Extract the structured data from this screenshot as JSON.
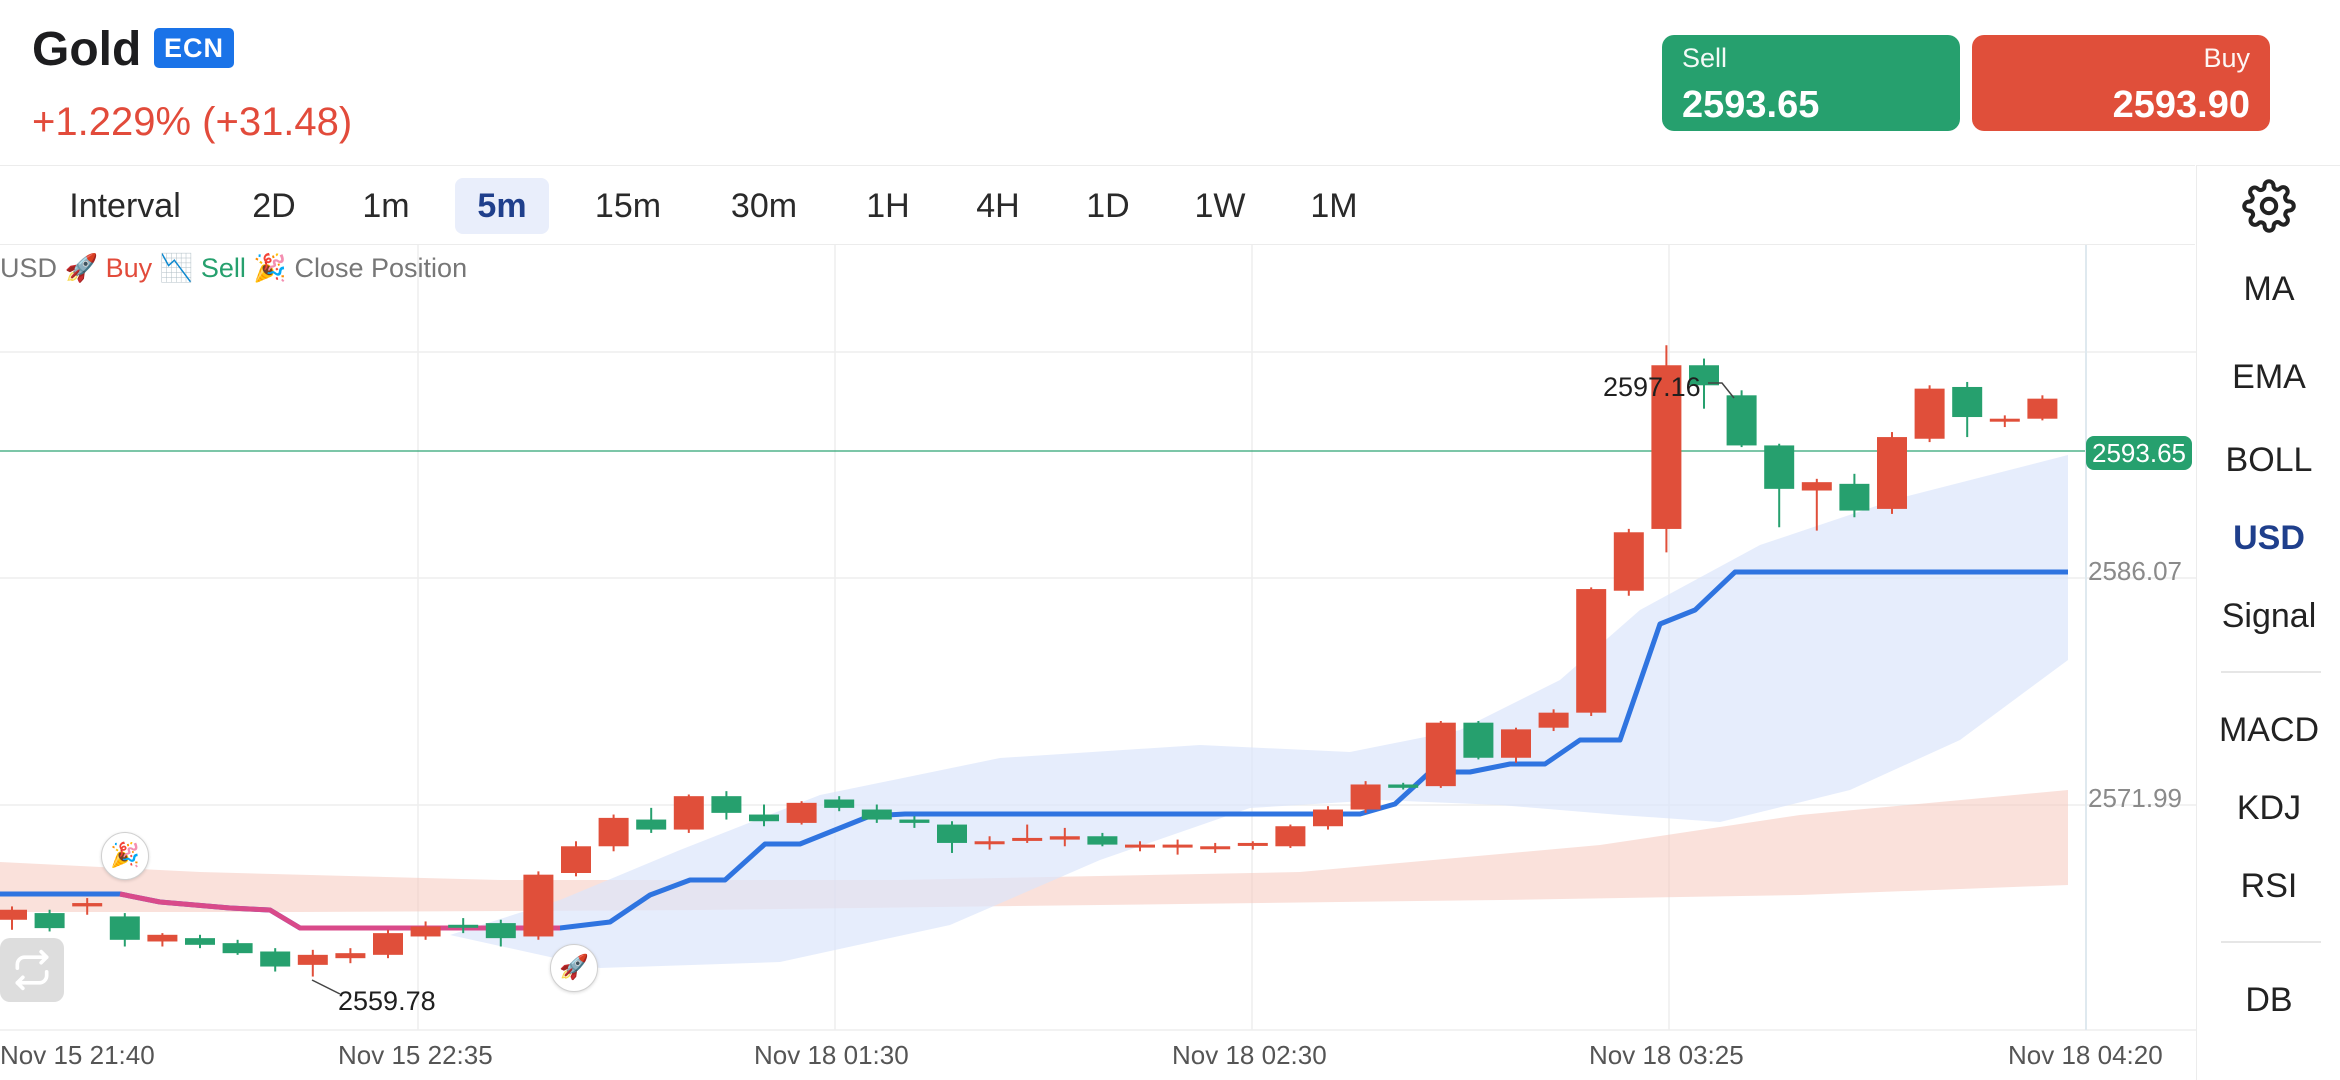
{
  "header": {
    "symbol": "Gold",
    "badge": "ECN",
    "change": "+1.229% (+31.48)"
  },
  "sell": {
    "label": "Sell",
    "price": "2593.65"
  },
  "buy": {
    "label": "Buy",
    "price": "2593.90"
  },
  "intervals": [
    {
      "label": "Interval",
      "active": false
    },
    {
      "label": "2D",
      "active": false
    },
    {
      "label": "1m",
      "active": false
    },
    {
      "label": "5m",
      "active": true
    },
    {
      "label": "15m",
      "active": false
    },
    {
      "label": "30m",
      "active": false
    },
    {
      "label": "1H",
      "active": false
    },
    {
      "label": "4H",
      "active": false
    },
    {
      "label": "1D",
      "active": false
    },
    {
      "label": "1W",
      "active": false
    },
    {
      "label": "1M",
      "active": false
    }
  ],
  "indicators": {
    "ma": "MA",
    "ema": "EMA",
    "boll": "BOLL",
    "usd": "USD",
    "signal": "Signal",
    "macd": "MACD",
    "kdj": "KDJ",
    "rsi": "RSI",
    "db": "DB"
  },
  "legend": {
    "usd": "USD",
    "buy": "🚀 Buy",
    "sell": "📉 Sell",
    "close": "🎉 Close Position"
  },
  "chart": {
    "x_labels": [
      "Nov 15 21:40",
      "Nov 15 22:35",
      "Nov 18 01:30",
      "Nov 18 02:30",
      "Nov 18 03:25",
      "Nov 18 04:20"
    ],
    "y_labels": [
      "2586.07",
      "2571.99"
    ],
    "current_price": "2593.65",
    "high_annotation": "2597.16",
    "low_annotation": "2559.78",
    "colors": {
      "up": "#26a06e",
      "down": "#e04f3a",
      "usd_line": "#2f74e0",
      "signal_pink": "#d94a8a"
    }
  },
  "chart_data": {
    "type": "candlestick",
    "y_range": [
      2556,
      2603
    ],
    "candles": [
      [
        2562.6,
        2563.4,
        2562.0,
        2563.2
      ],
      [
        2563.0,
        2563.2,
        2561.9,
        2562.1
      ],
      [
        2563.4,
        2563.9,
        2562.9,
        2563.6
      ],
      [
        2562.8,
        2563.0,
        2561.0,
        2561.4
      ],
      [
        2561.3,
        2561.8,
        2561.0,
        2561.7
      ],
      [
        2561.5,
        2561.7,
        2560.9,
        2561.1
      ],
      [
        2561.2,
        2561.4,
        2560.5,
        2560.6
      ],
      [
        2560.7,
        2560.9,
        2559.5,
        2559.8
      ],
      [
        2559.9,
        2560.8,
        2559.2,
        2560.5
      ],
      [
        2560.3,
        2560.9,
        2560.0,
        2560.6
      ],
      [
        2560.5,
        2562.0,
        2560.3,
        2561.8
      ],
      [
        2561.6,
        2562.5,
        2561.4,
        2562.2
      ],
      [
        2562.3,
        2562.7,
        2561.8,
        2562.2
      ],
      [
        2562.4,
        2562.6,
        2561.0,
        2561.5
      ],
      [
        2561.6,
        2565.5,
        2561.4,
        2565.3
      ],
      [
        2565.4,
        2567.3,
        2565.2,
        2567.0
      ],
      [
        2567.0,
        2568.9,
        2566.7,
        2568.7
      ],
      [
        2568.6,
        2569.3,
        2567.8,
        2568.0
      ],
      [
        2568.0,
        2570.1,
        2567.8,
        2570.0
      ],
      [
        2570.0,
        2570.3,
        2568.6,
        2569.0
      ],
      [
        2568.9,
        2569.5,
        2568.2,
        2568.5
      ],
      [
        2568.4,
        2569.7,
        2568.3,
        2569.6
      ],
      [
        2569.8,
        2570.0,
        2569.1,
        2569.3
      ],
      [
        2569.2,
        2569.5,
        2568.4,
        2568.6
      ],
      [
        2568.6,
        2568.8,
        2568.1,
        2568.4
      ],
      [
        2568.3,
        2568.5,
        2566.6,
        2567.2
      ],
      [
        2567.2,
        2567.6,
        2566.8,
        2567.3
      ],
      [
        2567.4,
        2568.3,
        2567.2,
        2567.5
      ],
      [
        2567.4,
        2568.1,
        2567.0,
        2567.6
      ],
      [
        2567.6,
        2567.8,
        2567.0,
        2567.1
      ],
      [
        2567.0,
        2567.3,
        2566.7,
        2567.1
      ],
      [
        2567.0,
        2567.4,
        2566.5,
        2567.1
      ],
      [
        2567.0,
        2567.2,
        2566.6,
        2567.0
      ],
      [
        2567.1,
        2567.3,
        2566.8,
        2567.2
      ],
      [
        2567.0,
        2568.3,
        2566.9,
        2568.2
      ],
      [
        2568.2,
        2569.4,
        2568.0,
        2569.2
      ],
      [
        2569.2,
        2570.9,
        2569.0,
        2570.7
      ],
      [
        2570.7,
        2570.8,
        2570.4,
        2570.5
      ],
      [
        2570.6,
        2574.5,
        2570.5,
        2574.4
      ],
      [
        2574.4,
        2574.5,
        2572.2,
        2572.3
      ],
      [
        2572.3,
        2574.1,
        2572.0,
        2574.0
      ],
      [
        2574.1,
        2575.2,
        2573.9,
        2575.0
      ],
      [
        2575.0,
        2582.5,
        2574.8,
        2582.4
      ],
      [
        2582.3,
        2586.0,
        2582.0,
        2585.8
      ],
      [
        2586.0,
        2597.0,
        2584.6,
        2595.8
      ],
      [
        2595.8,
        2596.2,
        2593.2,
        2594.6
      ],
      [
        2594.0,
        2594.3,
        2590.9,
        2591.0
      ],
      [
        2591.0,
        2591.1,
        2586.1,
        2588.4
      ],
      [
        2588.3,
        2589.0,
        2585.9,
        2588.8
      ],
      [
        2588.7,
        2589.3,
        2586.7,
        2587.1
      ],
      [
        2587.2,
        2591.8,
        2586.9,
        2591.5
      ],
      [
        2591.4,
        2594.6,
        2591.2,
        2594.4
      ],
      [
        2594.5,
        2594.8,
        2591.5,
        2592.7
      ],
      [
        2592.5,
        2592.8,
        2592.1,
        2592.6
      ],
      [
        2592.6,
        2594.0,
        2592.5,
        2593.8
      ]
    ]
  }
}
